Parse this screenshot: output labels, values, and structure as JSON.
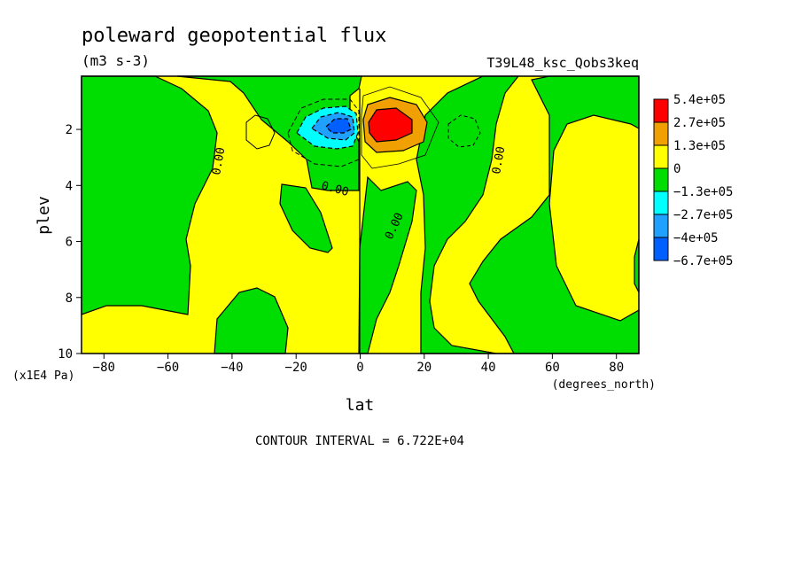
{
  "chart_data": {
    "type": "heatmap",
    "title": "poleward geopotential flux",
    "units": "(m3 s-3)",
    "run_label": "T39L48_ksc_Qobs3keq",
    "xlabel": "lat",
    "x_units": "(degrees_north)",
    "ylabel": "plev",
    "y_units": "(x1E4 Pa)",
    "x_ticks": [
      "-80",
      "-60",
      "-40",
      "-20",
      "0",
      "20",
      "40",
      "60",
      "80"
    ],
    "y_ticks": [
      "2",
      "4",
      "6",
      "8",
      "10"
    ],
    "xlim": [
      -87,
      87
    ],
    "ylim": [
      10,
      0.1
    ],
    "contour_interval": "CONTOUR INTERVAL = 6.722E+04",
    "contour_labels": [
      "0.00",
      "0.00",
      "0.00",
      "0.00"
    ],
    "colorbar": {
      "levels": [
        "5.4e+05",
        "2.7e+05",
        "1.3e+05",
        "0",
        "−1.3e+05",
        "−2.7e+05",
        "−4e+05",
        "−6.7e+05"
      ],
      "colors": [
        "#ff0000",
        "#f0a000",
        "#ffff00",
        "#00dd00",
        "#00ffff",
        "#20a0ff",
        "#0060ff"
      ]
    },
    "features": {
      "positive_max": {
        "lat": 8,
        "plev": 2,
        "approx_value": 540000
      },
      "negative_min": {
        "lat": -8,
        "plev": 2,
        "approx_value": -400000
      }
    }
  }
}
